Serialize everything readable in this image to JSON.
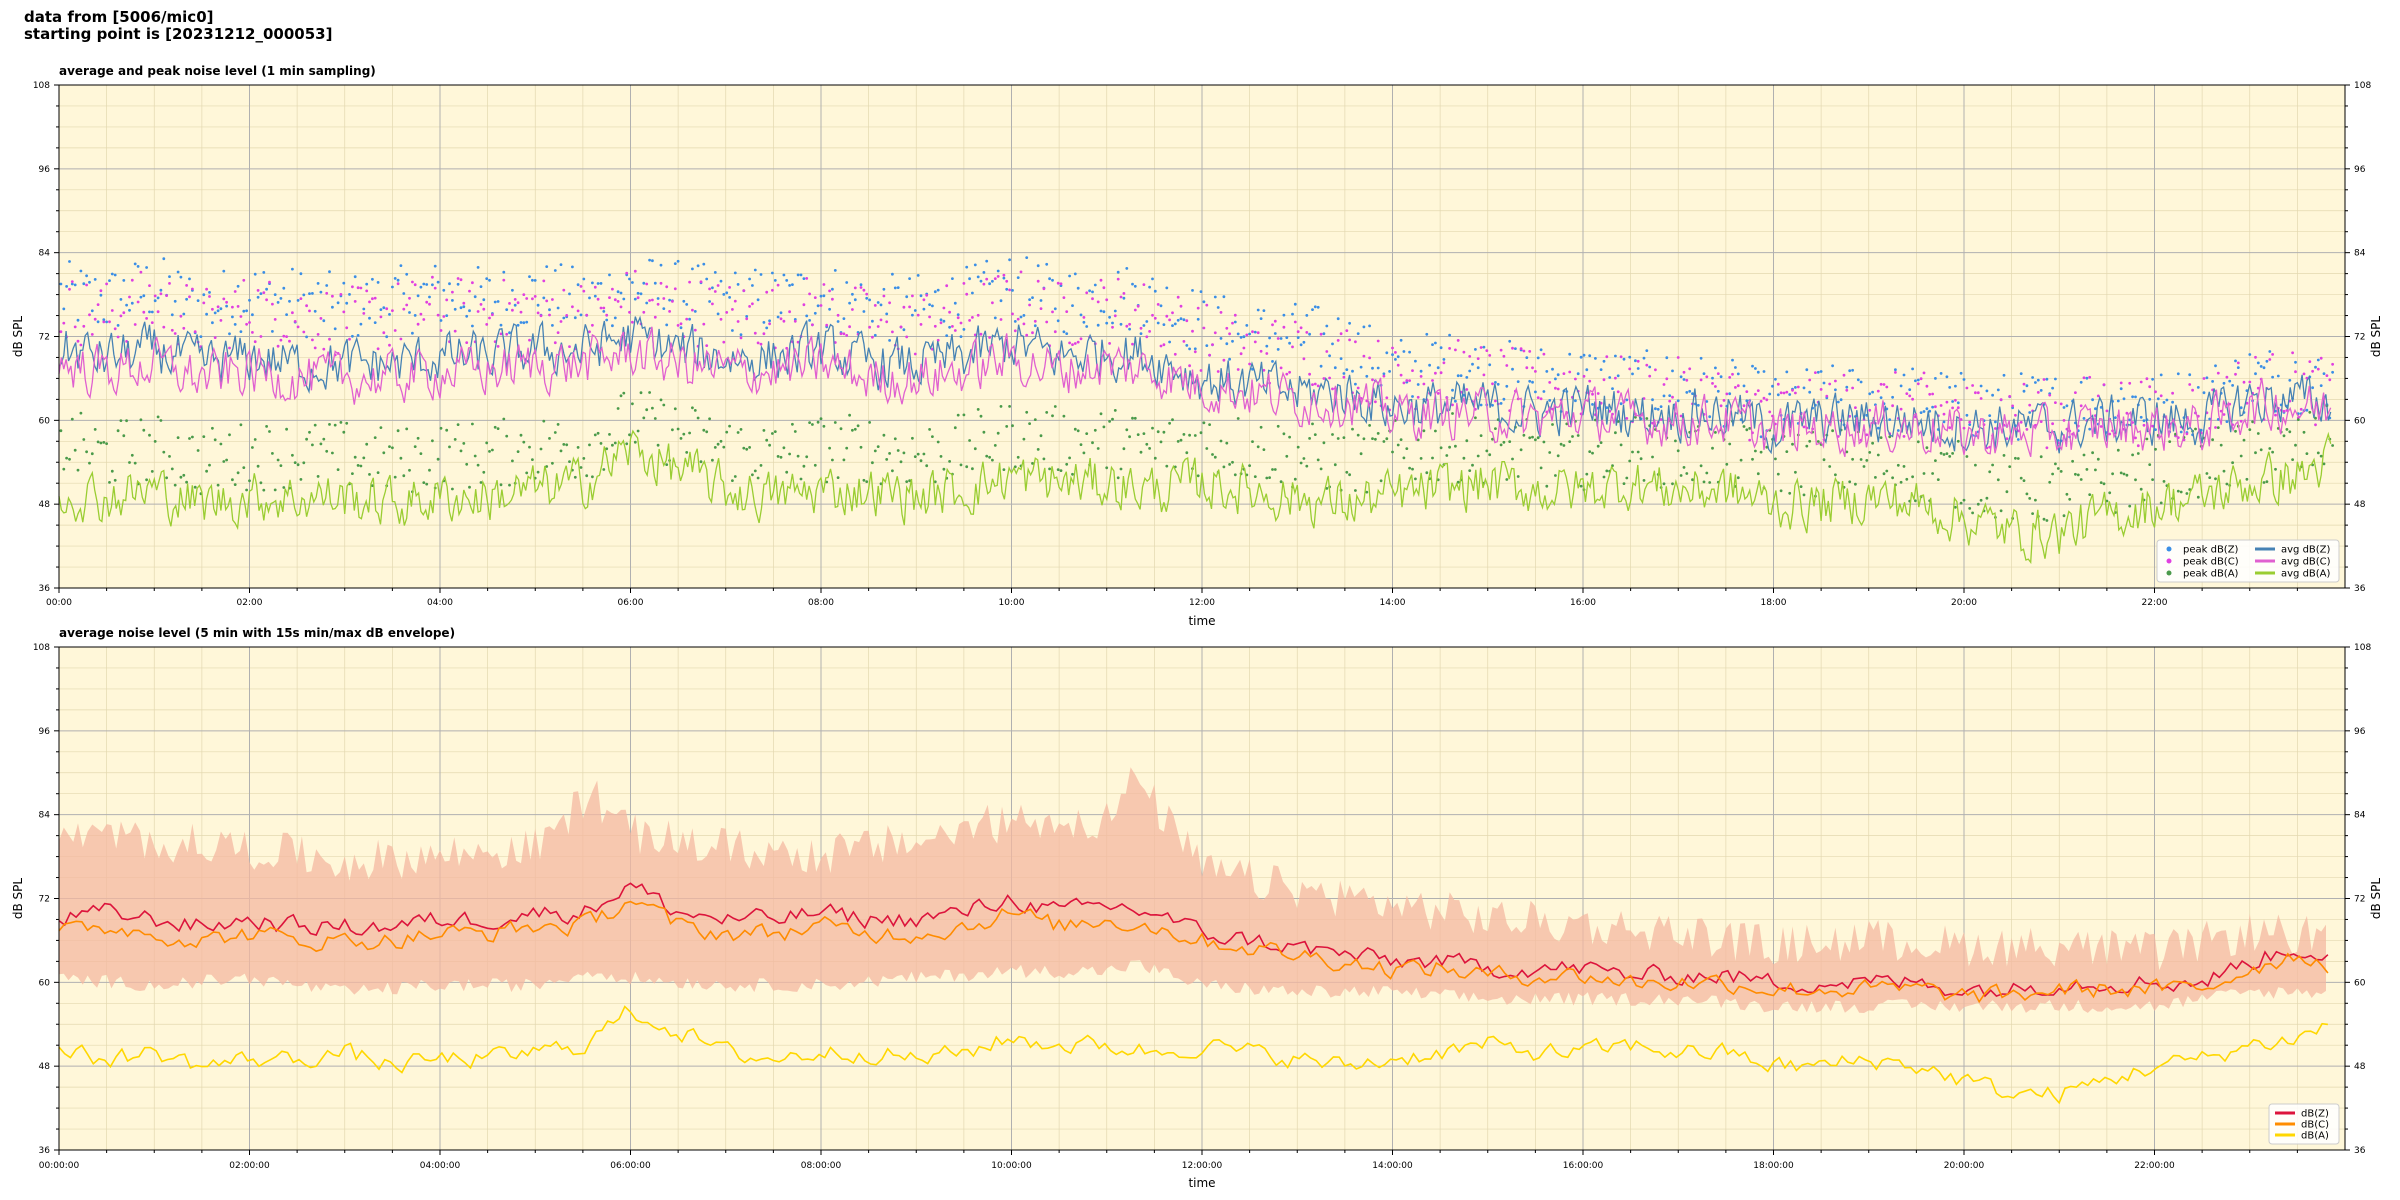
{
  "header": {
    "line1": "data from [5006/mic0]",
    "line2": "starting point is [20231212_000053]"
  },
  "chart_data": [
    {
      "type": "line",
      "title": "average and peak noise level (1 min sampling)",
      "xlabel": "time",
      "ylabel": "dB SPL",
      "ylabel_right": "dB SPL",
      "xlim": [
        0,
        24
      ],
      "ylim": [
        36,
        108
      ],
      "yticks": [
        36,
        48,
        60,
        72,
        84,
        96,
        108
      ],
      "xticks": [
        0,
        2,
        4,
        6,
        8,
        10,
        12,
        14,
        16,
        18,
        20,
        22
      ],
      "xtick_labels": [
        "00:00",
        "02:00",
        "04:00",
        "06:00",
        "08:00",
        "10:00",
        "12:00",
        "14:00",
        "16:00",
        "18:00",
        "20:00",
        "22:00"
      ],
      "grid": true,
      "background": "#fff7d9",
      "legend_position": "lower-right",
      "legend_columns": 2,
      "x_hours": [
        0,
        0.5,
        1,
        1.5,
        2,
        2.5,
        3,
        3.5,
        4,
        4.5,
        5,
        5.5,
        6,
        6.5,
        7,
        7.5,
        8,
        8.5,
        9,
        9.5,
        10,
        10.5,
        11,
        11.5,
        12,
        12.5,
        13,
        13.5,
        14,
        14.5,
        15,
        15.5,
        16,
        16.5,
        17,
        17.5,
        18,
        18.5,
        19,
        19.5,
        20,
        20.5,
        21,
        21.5,
        22,
        22.5,
        23,
        23.5,
        24
      ],
      "series": [
        {
          "name": "peak dB(Z)",
          "kind": "scatter",
          "color": "#3a8ee6",
          "values": [
            78,
            77,
            79,
            76,
            78,
            77,
            76,
            77,
            78,
            77,
            78,
            77,
            79,
            78,
            77,
            77,
            78,
            76,
            76,
            77,
            79,
            77,
            78,
            77,
            74,
            72,
            72,
            71,
            67,
            68,
            67,
            66,
            66,
            65,
            65,
            64,
            62,
            63,
            63,
            63,
            62,
            62,
            62,
            63,
            62,
            63,
            66,
            66,
            64
          ]
        },
        {
          "name": "peak dB(C)",
          "kind": "scatter",
          "color": "#e040e0",
          "values": [
            76,
            75,
            77,
            74,
            76,
            75,
            74,
            75,
            76,
            75,
            76,
            75,
            77,
            76,
            75,
            75,
            76,
            74,
            74,
            75,
            77,
            75,
            76,
            75,
            72,
            70,
            70,
            69,
            66,
            67,
            66,
            65,
            65,
            64,
            64,
            63,
            61,
            62,
            62,
            62,
            61,
            61,
            61,
            62,
            61,
            62,
            65,
            65,
            63
          ]
        },
        {
          "name": "peak dB(A)",
          "kind": "scatter",
          "color": "#4a9a4a",
          "values": [
            57,
            55,
            56,
            54,
            55,
            55,
            55,
            54,
            55,
            55,
            56,
            56,
            60,
            58,
            56,
            55,
            56,
            56,
            55,
            56,
            58,
            57,
            57,
            56,
            57,
            56,
            55,
            54,
            55,
            56,
            56,
            55,
            55,
            56,
            55,
            55,
            54,
            54,
            54,
            53,
            52,
            50,
            50,
            51,
            53,
            54,
            55,
            56,
            58
          ]
        },
        {
          "name": "avg dB(Z)",
          "kind": "line",
          "color": "#4682b4",
          "values": [
            70,
            69,
            70,
            68,
            69,
            68,
            68,
            68,
            69,
            69,
            70,
            70,
            72,
            70,
            69,
            69,
            70,
            68,
            68,
            69,
            71,
            69,
            70,
            69,
            66,
            65,
            64,
            64,
            62,
            62,
            62,
            61,
            62,
            61,
            61,
            61,
            59,
            60,
            60,
            60,
            59,
            59,
            59,
            60,
            60,
            60,
            63,
            63,
            62
          ]
        },
        {
          "name": "avg dB(C)",
          "kind": "line",
          "color": "#e060d0",
          "values": [
            68,
            67,
            68,
            66,
            67,
            66,
            66,
            66,
            67,
            67,
            68,
            68,
            70,
            68,
            67,
            67,
            68,
            66,
            66,
            67,
            69,
            67,
            68,
            67,
            65,
            64,
            63,
            63,
            61,
            61,
            61,
            60,
            61,
            60,
            60,
            60,
            58,
            59,
            59,
            59,
            58,
            58,
            58,
            59,
            59,
            59,
            62,
            62,
            61
          ]
        },
        {
          "name": "avg dB(A)",
          "kind": "line",
          "color": "#9acd32",
          "values": [
            50,
            49,
            50,
            48,
            49,
            49,
            49,
            48,
            49,
            49,
            50,
            51,
            56,
            53,
            50,
            49,
            50,
            50,
            49,
            50,
            52,
            51,
            51,
            50,
            51,
            50,
            49,
            48,
            49,
            50,
            51,
            50,
            50,
            51,
            50,
            50,
            48,
            48,
            49,
            48,
            46,
            44,
            44,
            46,
            48,
            49,
            51,
            52,
            55
          ]
        }
      ]
    },
    {
      "type": "line",
      "title": "average noise level (5 min with 15s min/max dB envelope)",
      "xlabel": "time",
      "ylabel": "dB SPL",
      "ylabel_right": "dB SPL",
      "xlim": [
        0,
        24
      ],
      "ylim": [
        36,
        108
      ],
      "yticks": [
        36,
        48,
        60,
        72,
        84,
        96,
        108
      ],
      "xticks": [
        0,
        2,
        4,
        6,
        8,
        10,
        12,
        14,
        16,
        18,
        20,
        22
      ],
      "xtick_labels": [
        "00:00:00",
        "02:00:00",
        "04:00:00",
        "06:00:00",
        "08:00:00",
        "10:00:00",
        "12:00:00",
        "14:00:00",
        "16:00:00",
        "18:00:00",
        "20:00:00",
        "22:00:00"
      ],
      "grid": true,
      "background": "#fff7d9",
      "legend_position": "lower-right",
      "legend_columns": 1,
      "envelope": {
        "color": "#f4b8a0",
        "x_hours": [
          0,
          1,
          2,
          3,
          4,
          5,
          5.6,
          6,
          7,
          8,
          9,
          10,
          11,
          11.3,
          12,
          13,
          14,
          15,
          16,
          17,
          18,
          19,
          20,
          21,
          22,
          23,
          24
        ],
        "upper": [
          80,
          79,
          78,
          76,
          77,
          78,
          86,
          80,
          78,
          77,
          79,
          82,
          82,
          88,
          75,
          72,
          70,
          68,
          67,
          66,
          64,
          65,
          64,
          64,
          63,
          66,
          65
        ],
        "lower": [
          61,
          60,
          61,
          59,
          60,
          60,
          62,
          61,
          60,
          60,
          61,
          62,
          62,
          63,
          60,
          59,
          59,
          58,
          58,
          58,
          57,
          57,
          57,
          57,
          57,
          59,
          59
        ]
      },
      "x_hours": [
        0,
        0.5,
        1,
        1.5,
        2,
        2.5,
        3,
        3.5,
        4,
        4.5,
        5,
        5.5,
        6,
        6.5,
        7,
        7.5,
        8,
        8.5,
        9,
        9.5,
        10,
        10.5,
        11,
        11.5,
        12,
        12.5,
        13,
        13.5,
        14,
        14.5,
        15,
        15.5,
        16,
        16.5,
        17,
        17.5,
        18,
        18.5,
        19,
        19.5,
        20,
        20.5,
        21,
        21.5,
        22,
        22.5,
        23,
        23.5,
        24
      ],
      "series": [
        {
          "name": "dB(Z)",
          "kind": "line",
          "color": "#dc143c",
          "values": [
            69,
            70,
            69,
            68,
            69,
            68,
            68,
            68,
            69,
            69,
            70,
            70,
            74,
            70,
            69,
            69,
            70,
            69,
            69,
            70,
            72,
            70,
            71,
            70,
            67,
            66,
            65,
            64,
            63,
            63,
            62,
            62,
            62,
            61,
            61,
            61,
            60,
            60,
            60,
            60,
            59,
            59,
            60,
            60,
            60,
            60,
            63,
            65,
            63
          ]
        },
        {
          "name": "dB(C)",
          "kind": "line",
          "color": "#ff8c00",
          "values": [
            67,
            68,
            67,
            66,
            67,
            66,
            66,
            66,
            67,
            67,
            68,
            68,
            72,
            68,
            67,
            67,
            68,
            67,
            67,
            68,
            70,
            68,
            69,
            68,
            66,
            65,
            64,
            63,
            62,
            62,
            61,
            61,
            61,
            60,
            60,
            60,
            59,
            59,
            59,
            59,
            58,
            58,
            59,
            59,
            59,
            59,
            62,
            64,
            62
          ]
        },
        {
          "name": "dB(A)",
          "kind": "line",
          "color": "#ffd700",
          "values": [
            50,
            49,
            50,
            48,
            49,
            49,
            50,
            48,
            49,
            49,
            50,
            51,
            56,
            53,
            50,
            49,
            50,
            50,
            49,
            50,
            52,
            51,
            51,
            50,
            51,
            50,
            49,
            48,
            49,
            50,
            51,
            50,
            50,
            51,
            50,
            50,
            48,
            48,
            49,
            48,
            46,
            44,
            44,
            46,
            48,
            49,
            51,
            52,
            55
          ]
        }
      ]
    }
  ]
}
